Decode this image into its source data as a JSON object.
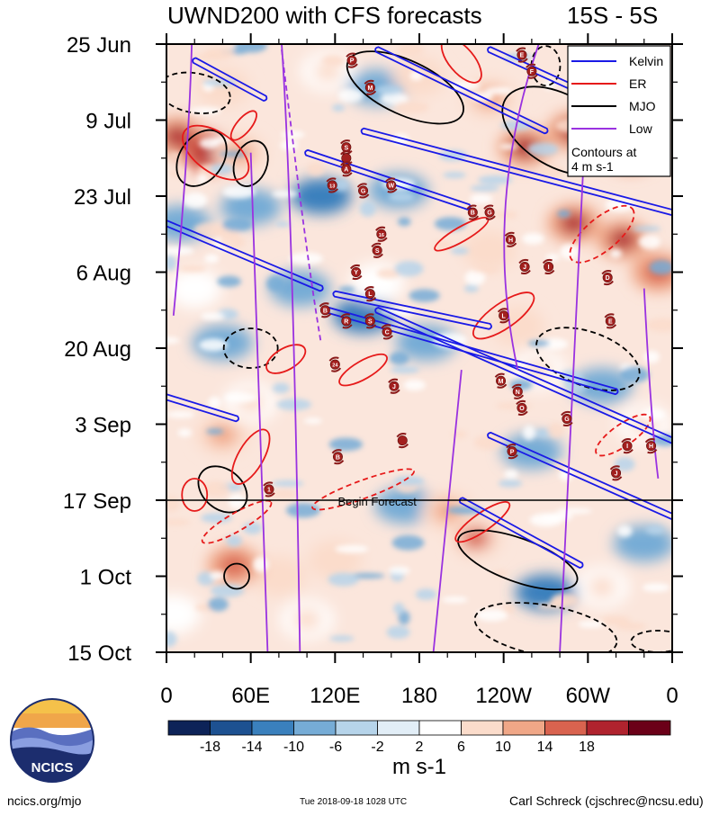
{
  "chart_data": {
    "type": "heatmap",
    "title": "UWND200 with CFS forecasts",
    "region": "15S - 5S",
    "x_ticks": [
      "0",
      "60E",
      "120E",
      "180",
      "120W",
      "60W",
      "0"
    ],
    "x_range": [
      0,
      360
    ],
    "y_ticks": [
      "25 Jun",
      "9 Jul",
      "23 Jul",
      "6 Aug",
      "20 Aug",
      "3 Sep",
      "17 Sep",
      "1 Oct",
      "15 Oct"
    ],
    "y_range_days": [
      0,
      112
    ],
    "forecast_start_day": 84,
    "forecast_label": "Begin Forecast",
    "colorbar": {
      "levels": [
        "-18",
        "-14",
        "-10",
        "-6",
        "-2",
        "2",
        "6",
        "10",
        "14",
        "18"
      ],
      "colors": [
        "#0d2358",
        "#1d5191",
        "#3a80bd",
        "#76acd6",
        "#b6d4ea",
        "#e2eef7",
        "#ffffff",
        "#fbdccb",
        "#f0a787",
        "#d9634f",
        "#b0232e",
        "#6b0018"
      ],
      "units": "m s-1"
    },
    "legend": {
      "entries": [
        {
          "name": "Kelvin",
          "color": "#1a1ae6"
        },
        {
          "name": "ER",
          "color": "#e61a1a"
        },
        {
          "name": "MJO",
          "color": "#000000"
        },
        {
          "name": "Low",
          "color": "#9a32e0"
        }
      ],
      "note_line1": "Contours at",
      "note_line2": "4 m s-1",
      "placement": "top-right"
    },
    "hot_spots": [
      {
        "lon": 8,
        "day": 17,
        "value": 22
      },
      {
        "lon": 30,
        "day": 20,
        "value": 24
      },
      {
        "lon": 52,
        "day": 20,
        "value": 14
      },
      {
        "lon": 40,
        "day": 8,
        "value": 10
      },
      {
        "lon": 115,
        "day": 5,
        "value": 8
      },
      {
        "lon": 180,
        "day": 6,
        "value": 10
      },
      {
        "lon": 230,
        "day": 10,
        "value": 12
      },
      {
        "lon": 255,
        "day": 19,
        "value": 22
      },
      {
        "lon": 290,
        "day": 16,
        "value": 20
      },
      {
        "lon": 330,
        "day": 20,
        "value": 22
      },
      {
        "lon": 290,
        "day": 33,
        "value": 20
      },
      {
        "lon": 325,
        "day": 36,
        "value": 22
      },
      {
        "lon": 350,
        "day": 42,
        "value": 18
      },
      {
        "lon": 230,
        "day": 38,
        "value": 10
      },
      {
        "lon": 250,
        "day": 52,
        "value": 10
      },
      {
        "lon": 265,
        "day": 60,
        "value": 8
      },
      {
        "lon": 40,
        "day": 72,
        "value": 12
      },
      {
        "lon": 60,
        "day": 66,
        "value": 8
      },
      {
        "lon": 220,
        "day": 91,
        "value": 16
      },
      {
        "lon": 200,
        "day": 86,
        "value": 12
      },
      {
        "lon": 120,
        "day": 95,
        "value": 10
      },
      {
        "lon": 80,
        "day": 98,
        "value": 10
      },
      {
        "lon": 48,
        "day": 96,
        "value": 18
      },
      {
        "lon": 100,
        "day": 106,
        "value": 8
      },
      {
        "lon": 310,
        "day": 100,
        "value": 8
      },
      {
        "lon": 150,
        "day": 44,
        "value": 4
      },
      {
        "lon": 20,
        "day": 45,
        "value": 6
      },
      {
        "lon": 340,
        "day": 70,
        "value": 8
      },
      {
        "lon": 5,
        "day": 105,
        "value": 6
      }
    ],
    "cold_spots": [
      {
        "lon": 110,
        "day": 28,
        "value": -10
      },
      {
        "lon": 165,
        "day": 27,
        "value": -8
      },
      {
        "lon": 95,
        "day": 45,
        "value": -8
      },
      {
        "lon": 140,
        "day": 50,
        "value": -10
      },
      {
        "lon": 185,
        "day": 55,
        "value": -8
      },
      {
        "lon": 260,
        "day": 75,
        "value": -8
      },
      {
        "lon": 310,
        "day": 63,
        "value": -8
      },
      {
        "lon": 40,
        "day": 55,
        "value": -8
      },
      {
        "lon": 10,
        "day": 33,
        "value": -6
      },
      {
        "lon": 150,
        "day": 8,
        "value": -6
      },
      {
        "lon": 270,
        "day": 101,
        "value": -12
      },
      {
        "lon": 170,
        "day": 85,
        "value": -6
      },
      {
        "lon": 340,
        "day": 92,
        "value": -6
      },
      {
        "lon": 60,
        "day": 30,
        "value": -6
      }
    ],
    "kelvin_waves": [
      {
        "lon0": 20,
        "day0": 3,
        "lon1": 70,
        "day1": 10
      },
      {
        "lon0": 230,
        "day0": 1,
        "lon1": 340,
        "day1": 14
      },
      {
        "lon0": 150,
        "day0": 1,
        "lon1": 270,
        "day1": 16
      },
      {
        "lon0": 140,
        "day0": 16,
        "lon1": 360,
        "day1": 31
      },
      {
        "lon0": 100,
        "day0": 20,
        "lon1": 215,
        "day1": 30
      },
      {
        "lon0": 0,
        "day0": 33,
        "lon1": 110,
        "day1": 45
      },
      {
        "lon0": 120,
        "day0": 46,
        "lon1": 230,
        "day1": 52
      },
      {
        "lon0": 115,
        "day0": 49,
        "lon1": 320,
        "day1": 64
      },
      {
        "lon0": 150,
        "day0": 49,
        "lon1": 360,
        "day1": 73
      },
      {
        "lon0": 0,
        "day0": 65,
        "lon1": 50,
        "day1": 69
      },
      {
        "lon0": 230,
        "day0": 72,
        "lon1": 360,
        "day1": 87
      },
      {
        "lon0": 210,
        "day0": 84,
        "lon1": 295,
        "day1": 96
      }
    ],
    "mjo_contours": [
      {
        "lon": 25,
        "day": 21,
        "rx": 24,
        "ry": 34,
        "angle": 35,
        "dash": false
      },
      {
        "lon": 60,
        "day": 22,
        "rx": 18,
        "ry": 26,
        "angle": 20,
        "dash": false
      },
      {
        "lon": 280,
        "day": 16,
        "rx": 40,
        "ry": 70,
        "angle": -60,
        "dash": false
      },
      {
        "lon": 170,
        "day": 8,
        "rx": 70,
        "ry": 30,
        "angle": 25,
        "dash": false
      },
      {
        "lon": 20,
        "day": 9,
        "rx": 40,
        "ry": 22,
        "angle": 10,
        "dash": true
      },
      {
        "lon": 270,
        "day": 4,
        "rx": 16,
        "ry": 22,
        "angle": 0,
        "dash": true
      },
      {
        "lon": 300,
        "day": 58,
        "rx": 60,
        "ry": 30,
        "angle": 20,
        "dash": true
      },
      {
        "lon": 250,
        "day": 95,
        "rx": 70,
        "ry": 24,
        "angle": 20,
        "dash": false
      },
      {
        "lon": 270,
        "day": 108,
        "rx": 80,
        "ry": 28,
        "angle": 10,
        "dash": true
      },
      {
        "lon": 40,
        "day": 82,
        "rx": 30,
        "ry": 22,
        "angle": 40,
        "dash": false
      },
      {
        "lon": 50,
        "day": 98,
        "rx": 14,
        "ry": 14,
        "angle": 0,
        "dash": false
      },
      {
        "lon": 60,
        "day": 56,
        "rx": 30,
        "ry": 22,
        "angle": 0,
        "dash": true
      },
      {
        "lon": 350,
        "day": 110,
        "rx": 30,
        "ry": 12,
        "angle": 0,
        "dash": true
      }
    ],
    "er_contours": [
      {
        "lon": 35,
        "day": 20,
        "rx": 42,
        "ry": 22,
        "angle": 35,
        "dash": false
      },
      {
        "lon": 85,
        "day": 58,
        "rx": 24,
        "ry": 12,
        "angle": -30,
        "dash": false
      },
      {
        "lon": 140,
        "day": 60,
        "rx": 30,
        "ry": 10,
        "angle": -30,
        "dash": false
      },
      {
        "lon": 210,
        "day": 35,
        "rx": 34,
        "ry": 8,
        "angle": -30,
        "dash": false
      },
      {
        "lon": 240,
        "day": 50,
        "rx": 40,
        "ry": 14,
        "angle": -35,
        "dash": false
      },
      {
        "lon": 310,
        "day": 35,
        "rx": 44,
        "ry": 18,
        "angle": -40,
        "dash": true
      },
      {
        "lon": 60,
        "day": 76,
        "rx": 34,
        "ry": 14,
        "angle": -60,
        "dash": false
      },
      {
        "lon": 50,
        "day": 88,
        "rx": 44,
        "ry": 10,
        "angle": -30,
        "dash": true
      },
      {
        "lon": 140,
        "day": 82,
        "rx": 60,
        "ry": 10,
        "angle": -20,
        "dash": true
      },
      {
        "lon": 225,
        "day": 88,
        "rx": 36,
        "ry": 10,
        "angle": -35,
        "dash": false
      },
      {
        "lon": 210,
        "day": 3,
        "rx": 30,
        "ry": 14,
        "angle": 50,
        "dash": false
      },
      {
        "lon": 55,
        "day": 15,
        "rx": 20,
        "ry": 8,
        "angle": -50,
        "dash": false
      },
      {
        "lon": 325,
        "day": 72,
        "rx": 36,
        "ry": 12,
        "angle": -35,
        "dash": true
      },
      {
        "lon": 20,
        "day": 83,
        "rx": 14,
        "ry": 18,
        "angle": 0,
        "dash": false
      }
    ],
    "low_lines": [
      {
        "lon0": 18,
        "day0": 0,
        "lon1": 16,
        "day1": 20,
        "lon2": 5,
        "day2": 50,
        "dash": false
      },
      {
        "lon0": 60,
        "day0": 20,
        "lon1": 65,
        "day1": 60,
        "lon2": 72,
        "day2": 112,
        "dash": false
      },
      {
        "lon0": 82,
        "day0": 0,
        "lon1": 90,
        "day1": 30,
        "lon2": 95,
        "day2": 112,
        "dash": false
      },
      {
        "lon0": 82,
        "day0": 1,
        "lon1": 100,
        "day1": 40,
        "lon2": 110,
        "day2": 55,
        "dash": true
      },
      {
        "lon0": 265,
        "day0": 0,
        "lon1": 225,
        "day1": 30,
        "lon2": 250,
        "day2": 60,
        "dash": false
      },
      {
        "lon0": 300,
        "day0": 5,
        "lon1": 290,
        "day1": 60,
        "lon2": 280,
        "day2": 112,
        "dash": false
      },
      {
        "lon0": 210,
        "day0": 60,
        "lon1": 200,
        "day1": 85,
        "lon2": 190,
        "day2": 112,
        "dash": false
      },
      {
        "lon0": 340,
        "day0": 45,
        "lon1": 345,
        "day1": 70,
        "lon2": 350,
        "day2": 80,
        "dash": false
      }
    ],
    "storms": [
      {
        "label": "E",
        "lon": 253,
        "day": 2
      },
      {
        "label": "F",
        "lon": 260,
        "day": 5
      },
      {
        "label": "P",
        "lon": 132,
        "day": 3
      },
      {
        "label": "M",
        "lon": 145,
        "day": 8
      },
      {
        "label": "S",
        "lon": 128,
        "day": 19
      },
      {
        "lon": 128,
        "day": 21
      },
      {
        "label": "A",
        "lon": 128,
        "day": 23
      },
      {
        "label": "13",
        "lon": 118,
        "day": 26
      },
      {
        "label": "G",
        "lon": 140,
        "day": 27
      },
      {
        "label": "W",
        "lon": 160,
        "day": 26
      },
      {
        "label": "B",
        "lon": 218,
        "day": 31
      },
      {
        "label": "G",
        "lon": 230,
        "day": 31
      },
      {
        "label": "H",
        "lon": 245,
        "day": 36
      },
      {
        "label": "16",
        "lon": 153,
        "day": 35
      },
      {
        "label": "S",
        "lon": 150,
        "day": 38
      },
      {
        "label": "Y",
        "lon": 135,
        "day": 42
      },
      {
        "label": "L",
        "lon": 145,
        "day": 46
      },
      {
        "label": "B",
        "lon": 113,
        "day": 49
      },
      {
        "label": "R",
        "lon": 128,
        "day": 51
      },
      {
        "label": "S",
        "lon": 145,
        "day": 51
      },
      {
        "label": "C",
        "lon": 157,
        "day": 53
      },
      {
        "label": "J",
        "lon": 255,
        "day": 41
      },
      {
        "label": "I",
        "lon": 272,
        "day": 41
      },
      {
        "label": "D",
        "lon": 314,
        "day": 43
      },
      {
        "label": "E",
        "lon": 316,
        "day": 51
      },
      {
        "label": "L",
        "lon": 240,
        "day": 50
      },
      {
        "label": "24",
        "lon": 120,
        "day": 59
      },
      {
        "label": "J",
        "lon": 162,
        "day": 63
      },
      {
        "label": "M",
        "lon": 238,
        "day": 62
      },
      {
        "label": "N",
        "lon": 250,
        "day": 64
      },
      {
        "label": "O",
        "lon": 253,
        "day": 67
      },
      {
        "label": "G",
        "lon": 285,
        "day": 69
      },
      {
        "label": "I",
        "lon": 328,
        "day": 74
      },
      {
        "label": "H",
        "lon": 345,
        "day": 74
      },
      {
        "label": "P",
        "lon": 246,
        "day": 75
      },
      {
        "label": "J",
        "lon": 320,
        "day": 79
      },
      {
        "lon": 168,
        "day": 73
      },
      {
        "label": "B",
        "lon": 122,
        "day": 76
      },
      {
        "label": "1",
        "lon": 73,
        "day": 82
      }
    ]
  },
  "footer": {
    "left": "ncics.org/mjo",
    "mid": "Tue 2018-09-18 1028 UTC",
    "right": "Carl Schreck (cjschrec@ncsu.edu)",
    "logo_text": "NCICS"
  }
}
